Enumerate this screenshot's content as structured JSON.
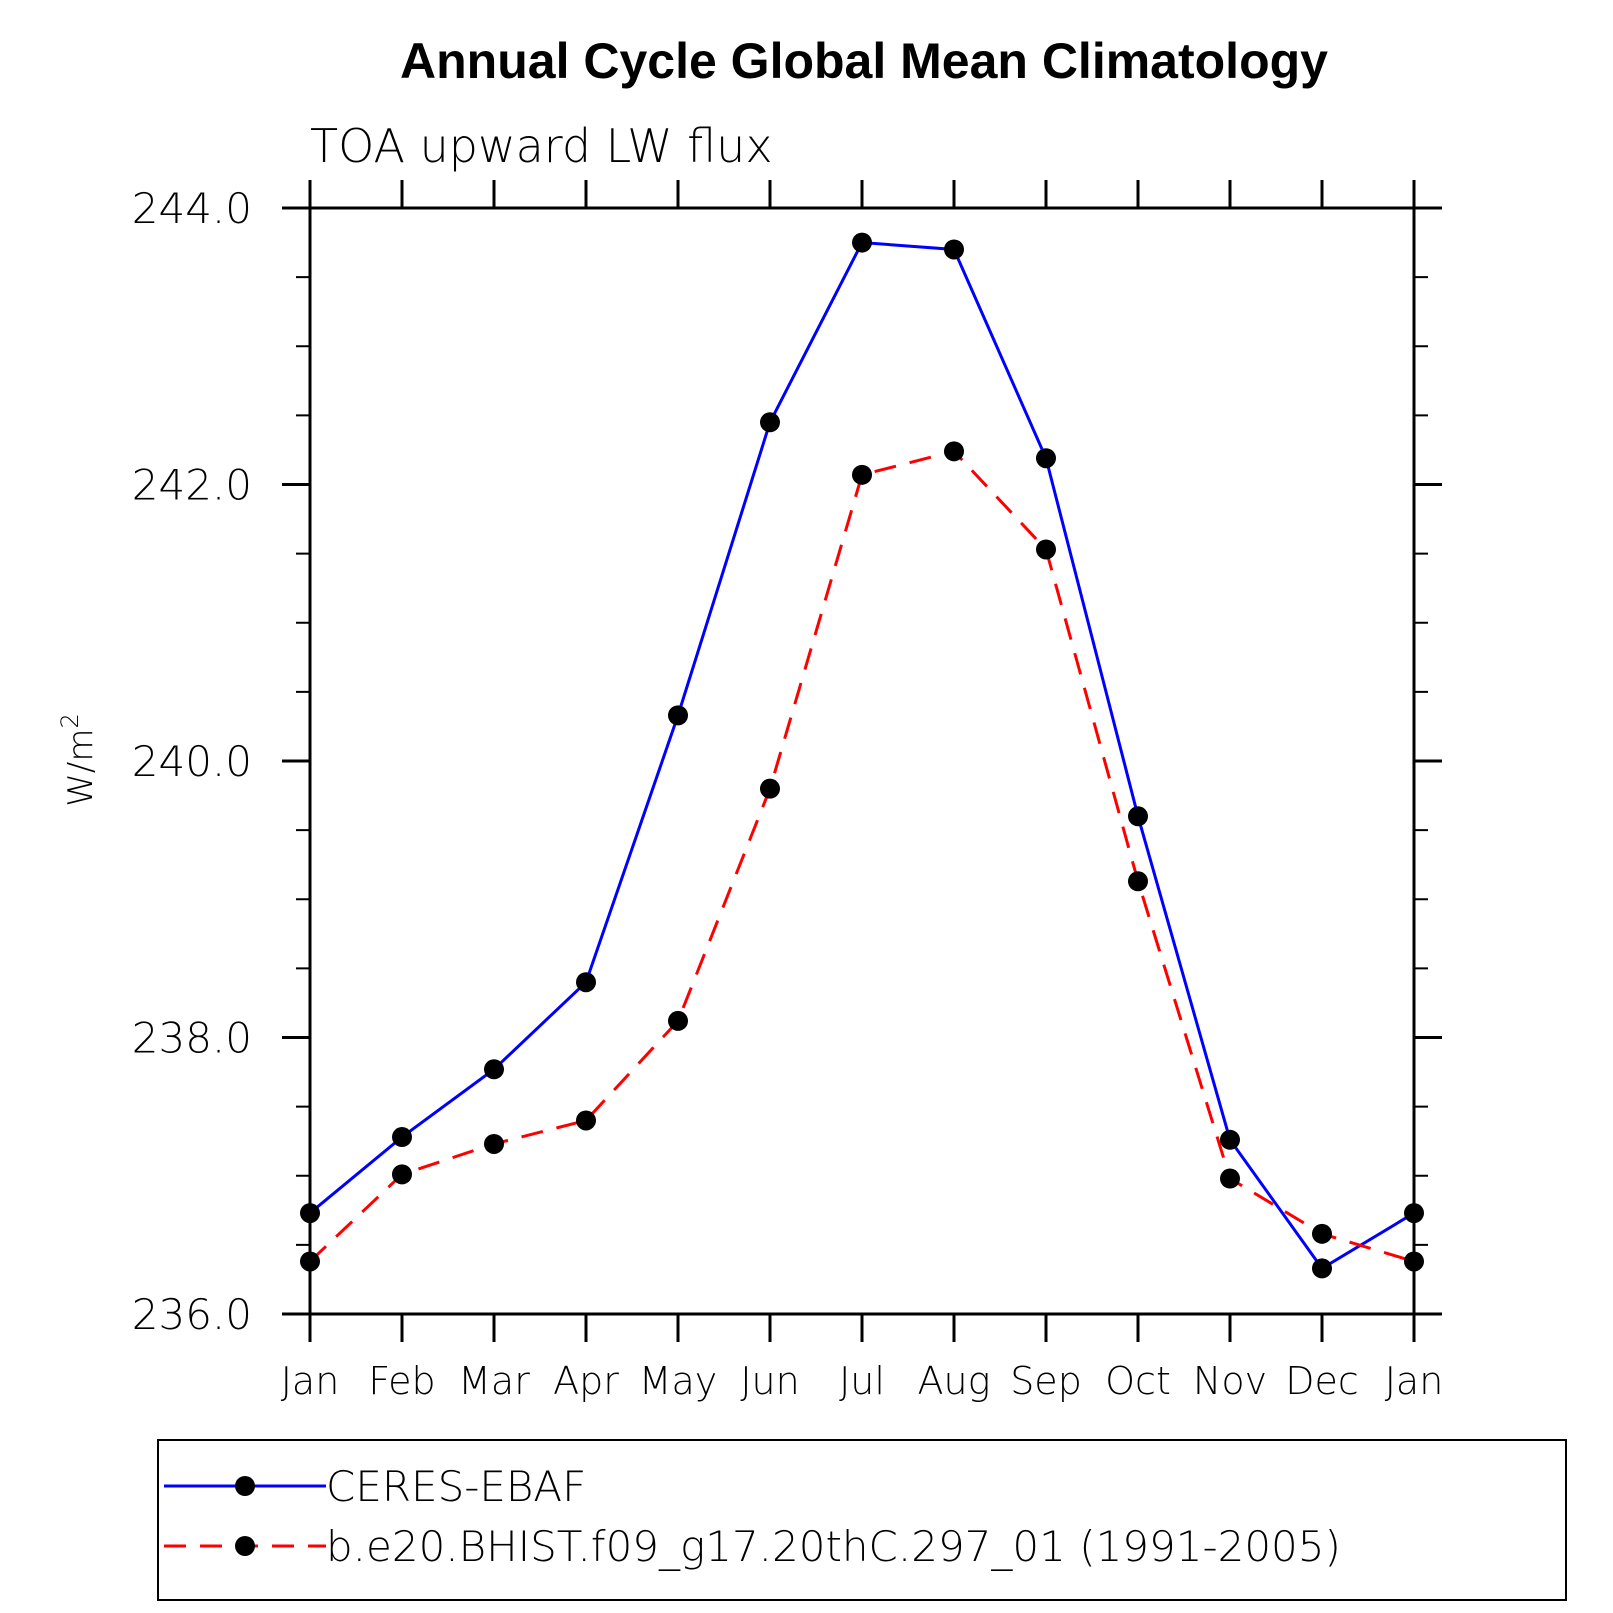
{
  "chart_data": {
    "type": "line",
    "title": "Annual Cycle Global Mean Climatology",
    "subtitle": "TOA upward LW flux",
    "ylabel": "W/m",
    "ylabel_sup": "2",
    "ylim": [
      236.0,
      244.0
    ],
    "yticks": [
      "236.0",
      "238.0",
      "240.0",
      "242.0",
      "244.0"
    ],
    "y_minor_step": 0.5,
    "categories": [
      "Jan",
      "Feb",
      "Mar",
      "Apr",
      "May",
      "Jun",
      "Jul",
      "Aug",
      "Sep",
      "Oct",
      "Nov",
      "Dec",
      "Jan"
    ],
    "series": [
      {
        "name": "CERES-EBAF",
        "color": "#0000ff",
        "dashed": false,
        "values": [
          236.73,
          237.28,
          237.77,
          238.4,
          240.33,
          242.45,
          243.75,
          243.7,
          242.19,
          239.6,
          237.26,
          236.33,
          236.73
        ]
      },
      {
        "name": "b.e20.BHIST.f09_g17.20thC.297_01 (1991-2005)",
        "color": "#ff0000",
        "dashed": true,
        "values": [
          236.38,
          237.01,
          237.23,
          237.4,
          238.12,
          239.8,
          242.07,
          242.24,
          241.53,
          239.13,
          236.98,
          236.58,
          236.38
        ]
      }
    ],
    "legend_position": "bottom",
    "grid": false
  }
}
